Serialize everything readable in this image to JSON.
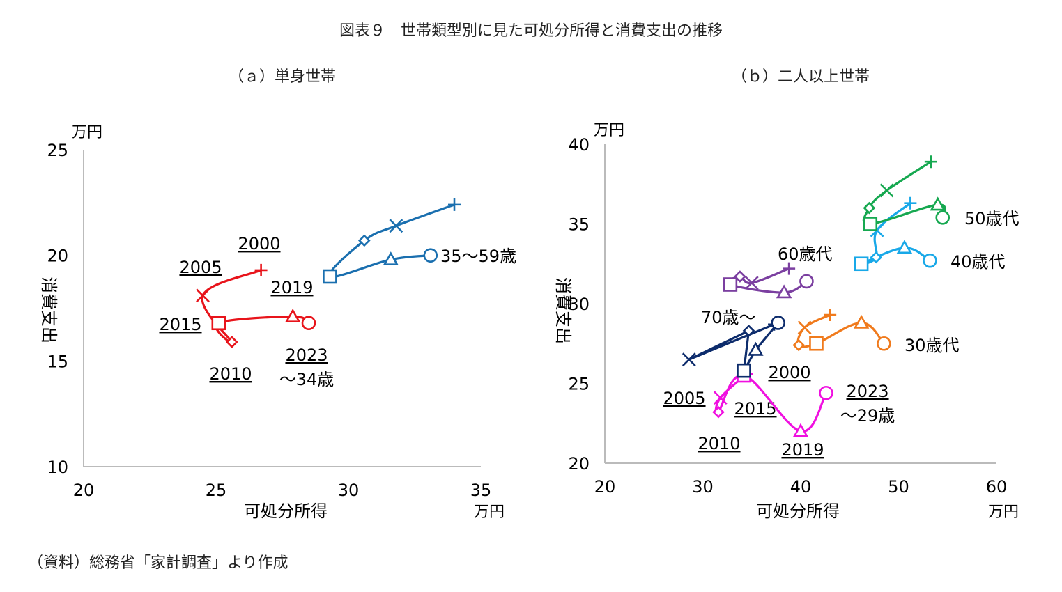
{
  "figure": {
    "title": "図表９　世帯類型別に見た可処分所得と消費支出の推移",
    "source": "（資料）総務省「家計調査」より作成"
  },
  "chart_data": [
    {
      "type": "line",
      "title": "（ａ）単身世帯",
      "xlabel": "可処分所得",
      "ylabel": "消費支出",
      "x_unit": "万円",
      "y_unit": "万円",
      "xlim": [
        20,
        35
      ],
      "ylim": [
        10,
        25
      ],
      "xticks": [
        20,
        25,
        30,
        35
      ],
      "yticks": [
        10,
        15,
        20,
        25
      ],
      "grid": false,
      "year_markers": {
        "2000": "+",
        "2005": "x",
        "2010": "diamond",
        "2015": "square",
        "2019": "triangle",
        "2023": "circle"
      },
      "series": [
        {
          "name": "～34歳",
          "color": "#e8141b",
          "points": [
            {
              "year": "2000",
              "x": 26.7,
              "y": 19.3
            },
            {
              "year": "2005",
              "x": 24.5,
              "y": 18.1
            },
            {
              "year": "2010",
              "x": 25.6,
              "y": 15.9
            },
            {
              "year": "2015",
              "x": 25.1,
              "y": 16.8
            },
            {
              "year": "2019",
              "x": 27.9,
              "y": 17.1
            },
            {
              "year": "2023",
              "x": 28.5,
              "y": 16.8
            }
          ]
        },
        {
          "name": "35～59歳",
          "color": "#1a6faf",
          "points": [
            {
              "year": "2000",
              "x": 34.0,
              "y": 22.4
            },
            {
              "year": "2005",
              "x": 31.8,
              "y": 21.4
            },
            {
              "year": "2010",
              "x": 30.6,
              "y": 20.7
            },
            {
              "year": "2015",
              "x": 29.3,
              "y": 19.0
            },
            {
              "year": "2019",
              "x": 31.6,
              "y": 19.8
            },
            {
              "year": "2023",
              "x": 33.1,
              "y": 20.0
            }
          ]
        }
      ],
      "annotations": [
        "2000",
        "2005",
        "2015",
        "2010",
        "2019",
        "2023"
      ]
    },
    {
      "type": "line",
      "title": "（ｂ）二人以上世帯",
      "xlabel": "可処分所得",
      "ylabel": "消費支出",
      "x_unit": "万円",
      "y_unit": "万円",
      "xlim": [
        20,
        60
      ],
      "ylim": [
        20,
        40
      ],
      "xticks": [
        20,
        30,
        40,
        50,
        60
      ],
      "yticks": [
        20,
        25,
        30,
        35,
        40
      ],
      "grid": false,
      "year_markers": {
        "2000": "+",
        "2005": "x",
        "2010": "diamond",
        "2015": "square",
        "2019": "triangle",
        "2023": "circle"
      },
      "series": [
        {
          "name": "～29歳",
          "color": "#f010e0",
          "points": [
            {
              "year": "2000",
              "x": 34.5,
              "y": 25.6
            },
            {
              "year": "2005",
              "x": 31.8,
              "y": 24.1
            },
            {
              "year": "2010",
              "x": 31.6,
              "y": 23.2
            },
            {
              "year": "2015",
              "x": 34.2,
              "y": 25.5
            },
            {
              "year": "2019",
              "x": 40.0,
              "y": 22.0
            },
            {
              "year": "2023",
              "x": 42.6,
              "y": 24.4
            }
          ]
        },
        {
          "name": "30歳代",
          "color": "#f07a1c",
          "points": [
            {
              "year": "2000",
              "x": 43.0,
              "y": 29.3
            },
            {
              "year": "2005",
              "x": 40.4,
              "y": 28.5
            },
            {
              "year": "2010",
              "x": 39.8,
              "y": 27.4
            },
            {
              "year": "2015",
              "x": 41.6,
              "y": 27.5
            },
            {
              "year": "2019",
              "x": 46.2,
              "y": 28.8
            },
            {
              "year": "2023",
              "x": 48.5,
              "y": 27.5
            }
          ]
        },
        {
          "name": "40歳代",
          "color": "#18a8e8",
          "points": [
            {
              "year": "2000",
              "x": 51.2,
              "y": 36.3
            },
            {
              "year": "2005",
              "x": 47.8,
              "y": 34.6
            },
            {
              "year": "2010",
              "x": 47.7,
              "y": 32.9
            },
            {
              "year": "2015",
              "x": 46.2,
              "y": 32.5
            },
            {
              "year": "2019",
              "x": 50.6,
              "y": 33.5
            },
            {
              "year": "2023",
              "x": 53.2,
              "y": 32.7
            }
          ]
        },
        {
          "name": "50歳代",
          "color": "#16a850",
          "points": [
            {
              "year": "2000",
              "x": 53.3,
              "y": 38.9
            },
            {
              "year": "2005",
              "x": 48.8,
              "y": 37.1
            },
            {
              "year": "2010",
              "x": 47.0,
              "y": 36.0
            },
            {
              "year": "2015",
              "x": 47.1,
              "y": 35.0
            },
            {
              "year": "2019",
              "x": 54.0,
              "y": 36.2
            },
            {
              "year": "2023",
              "x": 54.5,
              "y": 35.4
            }
          ]
        },
        {
          "name": "60歳代",
          "color": "#7b3fa0",
          "points": [
            {
              "year": "2000",
              "x": 38.8,
              "y": 32.2
            },
            {
              "year": "2005",
              "x": 35.0,
              "y": 31.3
            },
            {
              "year": "2010",
              "x": 33.8,
              "y": 31.7
            },
            {
              "year": "2015",
              "x": 32.8,
              "y": 31.2
            },
            {
              "year": "2019",
              "x": 38.3,
              "y": 30.7
            },
            {
              "year": "2023",
              "x": 40.6,
              "y": 31.4
            }
          ]
        },
        {
          "name": "70歳～",
          "color": "#0d2c6c",
          "points": [
            {
              "year": "2000",
              "x": 37.3,
              "y": 28.7
            },
            {
              "year": "2005",
              "x": 28.6,
              "y": 26.5
            },
            {
              "year": "2010",
              "x": 34.7,
              "y": 28.3
            },
            {
              "year": "2015",
              "x": 34.2,
              "y": 25.8
            },
            {
              "year": "2019",
              "x": 35.4,
              "y": 27.1
            },
            {
              "year": "2023",
              "x": 37.7,
              "y": 28.8
            }
          ]
        }
      ],
      "annotations": [
        "2000",
        "2005",
        "2010",
        "2015",
        "2019",
        "2023"
      ]
    }
  ]
}
